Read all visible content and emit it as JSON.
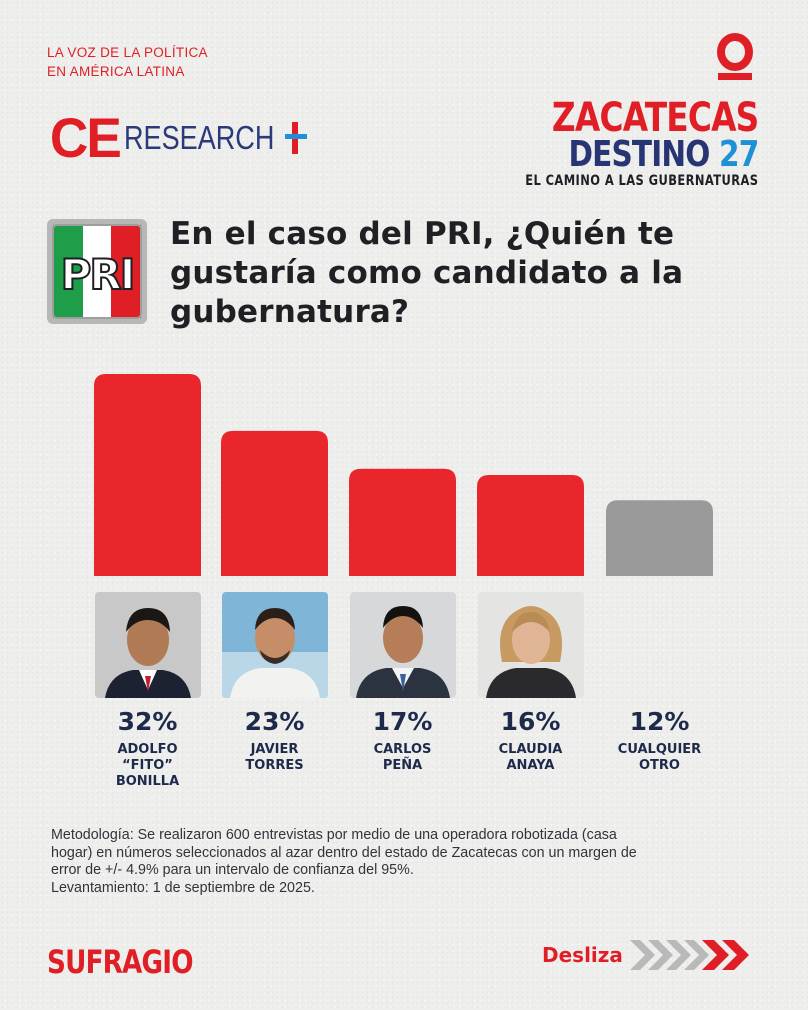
{
  "brand": {
    "tagline": [
      "LA VOZ DE LA POLÍTICA",
      "EN AMÉRICA LATINA"
    ],
    "ce_logo": {
      "ce": "CE",
      "research": "RESEARCH"
    },
    "campaign": {
      "line1": "ZACATECAS",
      "line2_word": "DESTINO",
      "line2_num": "27",
      "line3": "EL CAMINO A LAS GUBERNATURAS"
    },
    "party_logo": "PRI",
    "footer_logo": "SUFRAGIO",
    "swipe_label": "Desliza"
  },
  "question": "En el caso del PRI, ¿Quién te gustaría como candidato a la gubernatura?",
  "colors": {
    "accent_red": "#e01e26",
    "bar_red": "#e8262c",
    "bar_grey": "#9a9a9a",
    "navy": "#283574",
    "blue": "#1e90d6"
  },
  "chart_data": {
    "type": "bar",
    "categories": [
      "ADOLFO “FITO” BONILLA",
      "JAVIER TORRES",
      "CARLOS PEÑA",
      "CLAUDIA ANAYA",
      "CUALQUIER OTRO"
    ],
    "values": [
      32,
      23,
      17,
      16,
      12
    ],
    "value_labels": [
      "32%",
      "23%",
      "17%",
      "16%",
      "12%"
    ],
    "name_lines": [
      [
        "ADOLFO",
        "“FITO”",
        "BONILLA"
      ],
      [
        "JAVIER",
        "TORRES"
      ],
      [
        "CARLOS",
        "PEÑA"
      ],
      [
        "CLAUDIA",
        "ANAYA"
      ],
      [
        "CUALQUIER",
        "OTRO"
      ]
    ],
    "bar_colors": [
      "red",
      "red",
      "red",
      "red",
      "grey"
    ],
    "ylim": [
      0,
      32
    ],
    "grid": false,
    "legend": "none"
  },
  "methodology": [
    "Metodología: Se realizaron 600 entrevistas por medio de una operadora robotizada (casa",
    "hogar) en números seleccionados al azar dentro del estado de Zacatecas con un margen de",
    "error de +/- 4.9% para un intervalo de confianza del 95%.",
    "Levantamiento: 1 de septiembre de 2025."
  ]
}
